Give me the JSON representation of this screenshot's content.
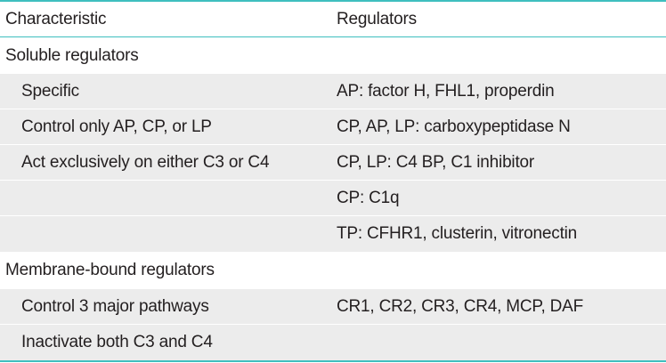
{
  "table": {
    "header": {
      "characteristic": "Characteristic",
      "regulators": "Regulators"
    },
    "rows": [
      {
        "characteristic": "Soluble regulators",
        "regulators": "",
        "indent": false,
        "shaded": false
      },
      {
        "characteristic": "Specific",
        "regulators": "AP: factor H, FHL1, properdin",
        "indent": true,
        "shaded": true
      },
      {
        "characteristic": "Control only AP, CP, or LP",
        "regulators": "CP, AP, LP: carboxypeptidase N",
        "indent": true,
        "shaded": true
      },
      {
        "characteristic": "Act exclusively on either C3 or C4",
        "regulators": "CP, LP: C4 BP, C1 inhibitor",
        "indent": true,
        "shaded": true
      },
      {
        "characteristic": "",
        "regulators": "CP: C1q",
        "indent": true,
        "shaded": true
      },
      {
        "characteristic": "",
        "regulators": "TP: CFHR1, clusterin, vitronectin",
        "indent": true,
        "shaded": true
      },
      {
        "characteristic": "Membrane-bound regulators",
        "regulators": "",
        "indent": false,
        "shaded": false
      },
      {
        "characteristic": "Control 3 major pathways",
        "regulators": "CR1, CR2, CR3, CR4, MCP, DAF",
        "indent": true,
        "shaded": true
      },
      {
        "characteristic": "Inactivate both C3 and C4",
        "regulators": "",
        "indent": true,
        "shaded": true
      }
    ]
  },
  "colors": {
    "rule": "#3fbfbf",
    "shade": "#ececec",
    "text": "#231f20"
  }
}
